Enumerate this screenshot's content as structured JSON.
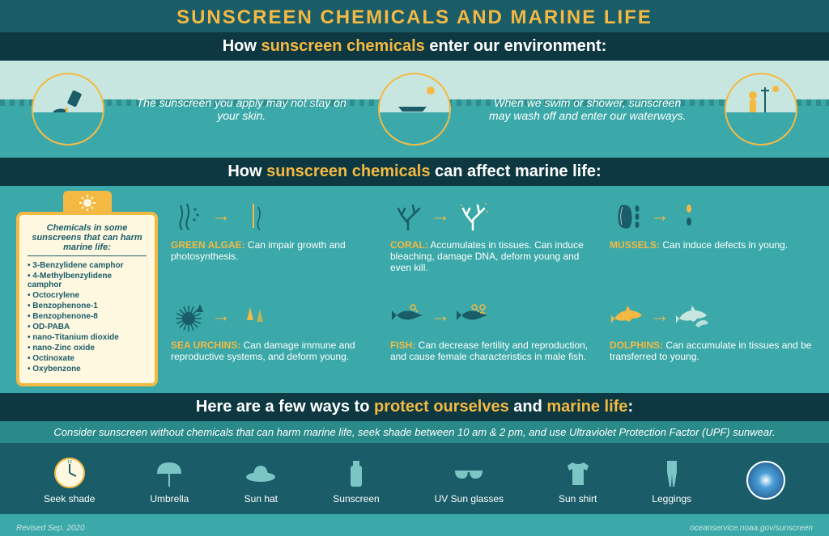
{
  "colors": {
    "gold": "#f4b942",
    "teal_bg": "#3ba9a9",
    "dark_teal": "#1a5c68",
    "darkest": "#0d3842",
    "pale": "#c8e6e0",
    "cream": "#fff8e1",
    "white": "#ffffff"
  },
  "title": "SUNSCREEN CHEMICALS AND MARINE LIFE",
  "section1": {
    "heading_prefix": "How ",
    "heading_highlight": "sunscreen chemicals",
    "heading_suffix": " enter our environment:",
    "caption_left": "The sunscreen you apply may not stay on your skin.",
    "caption_right": "When we swim or shower, sunscreen may wash off and enter our waterways."
  },
  "section2": {
    "heading_prefix": "How ",
    "heading_highlight": "sunscreen chemicals",
    "heading_suffix": " can affect marine life:",
    "bottle_title": "Chemicals in some sunscreens that can harm marine life:",
    "chemicals": [
      "3-Benzylidene camphor",
      "4-Methylbenzylidene camphor",
      "Octocrylene",
      "Benzophenone-1",
      "Benzophenone-8",
      "OD-PABA",
      "nano-Titanium dioxide",
      "nano-Zinc oxide",
      "Octinoxate",
      "Oxybenzone"
    ],
    "effects": [
      {
        "label": "GREEN ALGAE:",
        "desc": " Can impair growth and photosynthesis.",
        "icon": "algae"
      },
      {
        "label": "CORAL:",
        "desc": " Accumulates in tissues. Can induce bleaching, damage DNA, deform young and even kill.",
        "icon": "coral"
      },
      {
        "label": "MUSSELS:",
        "desc": " Can induce defects in young.",
        "icon": "mussel"
      },
      {
        "label": "SEA URCHINS:",
        "desc": " Can damage immune and reproductive systems, and deform young.",
        "icon": "urchin"
      },
      {
        "label": "FISH:",
        "desc": " Can decrease fertility and reproduction, and cause female characteristics in male fish.",
        "icon": "fish"
      },
      {
        "label": "DOLPHINS:",
        "desc": " Can accumulate in tissues and be transferred to young.",
        "icon": "dolphin"
      }
    ]
  },
  "section3": {
    "heading_prefix": "Here are a few ways to ",
    "heading_h1": "protect ourselves",
    "heading_mid": " and ",
    "heading_h2": "marine life",
    "heading_suffix": ":",
    "intro": "Consider sunscreen without chemicals that can harm marine life, seek shade between 10 am & 2 pm, and use Ultraviolet Protection Factor (UPF) sunwear.",
    "items": [
      {
        "label": "Seek shade",
        "icon": "clock"
      },
      {
        "label": "Umbrella",
        "icon": "umbrella"
      },
      {
        "label": "Sun hat",
        "icon": "hat"
      },
      {
        "label": "Sunscreen",
        "icon": "sunscreen"
      },
      {
        "label": "UV Sun glasses",
        "icon": "glasses"
      },
      {
        "label": "Sun shirt",
        "icon": "shirt"
      },
      {
        "label": "Leggings",
        "icon": "leggings"
      }
    ]
  },
  "footer": {
    "revised": "Revised Sep. 2020",
    "url": "oceanservice.noaa.gov/sunscreen"
  }
}
